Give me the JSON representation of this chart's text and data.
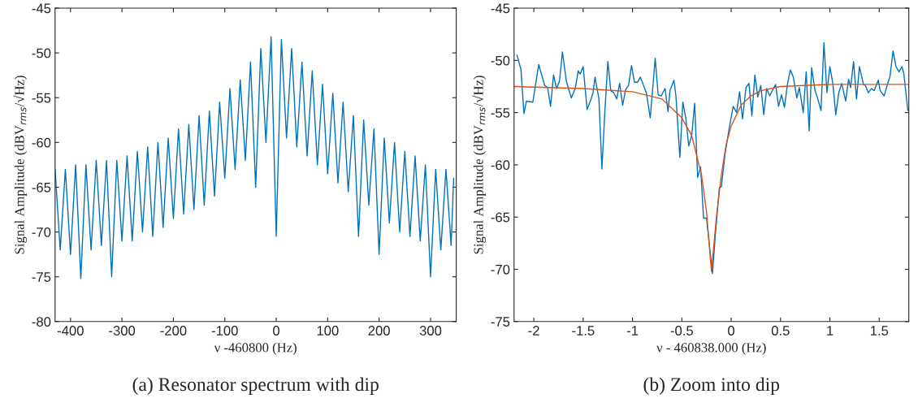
{
  "chart_data": [
    {
      "type": "line",
      "title": "(a) Resonator spectrum with dip",
      "xlabel": "ν -460800 (Hz)",
      "ylabel": "Signal Amplitude (dBV$_{rms}$/√Hz)",
      "xlim": [
        -430,
        350
      ],
      "xticks": [
        -400,
        -300,
        -200,
        -100,
        0,
        100,
        200,
        300
      ],
      "ylim": [
        -80,
        -45
      ],
      "yticks": [
        -80,
        -75,
        -70,
        -65,
        -60,
        -55,
        -50,
        -45
      ],
      "grid": false,
      "legend": false,
      "series": [
        {
          "color": "#0072bd",
          "x": [
            -430,
            -420,
            -410,
            -400,
            -390,
            -380,
            -370,
            -360,
            -350,
            -340,
            -330,
            -320,
            -310,
            -300,
            -290,
            -280,
            -270,
            -260,
            -250,
            -240,
            -230,
            -220,
            -210,
            -200,
            -190,
            -180,
            -170,
            -160,
            -150,
            -140,
            -130,
            -120,
            -110,
            -100,
            -90,
            -80,
            -70,
            -60,
            -50,
            -40,
            -30,
            -20,
            -10,
            0,
            10,
            20,
            30,
            40,
            50,
            60,
            70,
            80,
            90,
            100,
            110,
            120,
            130,
            140,
            150,
            160,
            170,
            180,
            190,
            200,
            210,
            220,
            230,
            240,
            250,
            260,
            270,
            280,
            290,
            300,
            310,
            320,
            330,
            340,
            345
          ],
          "values": [
            -63,
            -72,
            -63,
            -72.5,
            -62.5,
            -75.2,
            -62.5,
            -72,
            -62,
            -71.5,
            -62,
            -75,
            -62,
            -71,
            -61.5,
            -71,
            -61,
            -70,
            -60.5,
            -70.5,
            -60,
            -69.5,
            -59.5,
            -68.5,
            -58.5,
            -68,
            -58,
            -67.5,
            -57,
            -67,
            -56.5,
            -66,
            -55.5,
            -64,
            -54,
            -63,
            -53,
            -62,
            -51,
            -65,
            -49.5,
            -60,
            -48.2,
            -70.5,
            -48.5,
            -59.5,
            -49.5,
            -60.5,
            -51,
            -61.5,
            -52,
            -62.5,
            -53.5,
            -63.5,
            -54.5,
            -64.5,
            -55.5,
            -65.5,
            -57,
            -70.5,
            -57.5,
            -67,
            -58.5,
            -72.5,
            -59.5,
            -69,
            -60,
            -70,
            -61,
            -70.5,
            -61.5,
            -71,
            -62.5,
            -75,
            -63,
            -72,
            -63,
            -71.5,
            -64
          ]
        }
      ]
    },
    {
      "type": "line",
      "title": "(b) Zoom into dip",
      "xlabel": "ν - 460838.000 (Hz)",
      "ylabel": "Signal Amplitude (dBV$_{rms}$/√Hz)",
      "xlim": [
        -2.2,
        1.8
      ],
      "xticks": [
        -2,
        -1.5,
        -1,
        -0.5,
        0,
        0.5,
        1,
        1.5
      ],
      "ylim": [
        -75,
        -45
      ],
      "yticks": [
        -75,
        -70,
        -65,
        -60,
        -55,
        -50,
        -45
      ],
      "grid": false,
      "legend": false,
      "series": [
        {
          "color": "#0072bd",
          "x": [
            -2.17,
            -2.13,
            -2.1,
            -2.075,
            -2.01,
            -1.95,
            -1.89,
            -1.86,
            -1.83,
            -1.8,
            -1.77,
            -1.74,
            -1.71,
            -1.67,
            -1.62,
            -1.58,
            -1.55,
            -1.53,
            -1.5,
            -1.46,
            -1.42,
            -1.4,
            -1.38,
            -1.34,
            -1.31,
            -1.28,
            -1.25,
            -1.22,
            -1.19,
            -1.16,
            -1.13,
            -1.1,
            -1.07,
            -1.04,
            -1.01,
            -0.98,
            -0.95,
            -0.92,
            -0.86,
            -0.82,
            -0.77,
            -0.74,
            -0.71,
            -0.67,
            -0.64,
            -0.62,
            -0.58,
            -0.56,
            -0.52,
            -0.49,
            -0.46,
            -0.43,
            -0.4,
            -0.37,
            -0.34,
            -0.31,
            -0.28,
            -0.25,
            -0.19,
            -0.16,
            -0.12,
            -0.1,
            -0.06,
            -0.02,
            0.02,
            0.055,
            0.085,
            0.115,
            0.15,
            0.18,
            0.21,
            0.24,
            0.27,
            0.3,
            0.33,
            0.36,
            0.39,
            0.45,
            0.48,
            0.51,
            0.54,
            0.57,
            0.6,
            0.63,
            0.665,
            0.69,
            0.73,
            0.76,
            0.79,
            0.815,
            0.85,
            0.875,
            0.91,
            0.94,
            0.97,
            1.0,
            1.03,
            1.06,
            1.09,
            1.12,
            1.16,
            1.19,
            1.21,
            1.24,
            1.27,
            1.3,
            1.34,
            1.36,
            1.39,
            1.42,
            1.45,
            1.49,
            1.51,
            1.55,
            1.58,
            1.61,
            1.64,
            1.67,
            1.7,
            1.73,
            1.75,
            1.79
          ],
          "values": [
            -49.5,
            -50.9,
            -55.1,
            -53.9,
            -54,
            -50.4,
            -52.4,
            -52.6,
            -54.4,
            -51.4,
            -52.7,
            -52,
            -49.2,
            -52,
            -53.6,
            -52.7,
            -51,
            -51.3,
            -50.6,
            -54.7,
            -53.7,
            -53.1,
            -51.6,
            -53.7,
            -60.4,
            -54.9,
            -50.1,
            -52.9,
            -53.1,
            -53.7,
            -52.2,
            -54.3,
            -52.8,
            -52.4,
            -50.5,
            -52.1,
            -52.1,
            -51.6,
            -53.1,
            -55.5,
            -49.8,
            -53.3,
            -53.4,
            -52.7,
            -54.9,
            -52.9,
            -51.9,
            -53.4,
            -59.3,
            -54,
            -55.5,
            -58.2,
            -57.2,
            -54.1,
            -61.2,
            -60.2,
            -65.1,
            -65.1,
            -70.4,
            -66.7,
            -62.2,
            -62.1,
            -58.8,
            -56.5,
            -54.4,
            -55,
            -53,
            -55.6,
            -52.6,
            -52.2,
            -55.3,
            -51.4,
            -53.5,
            -52.4,
            -55.2,
            -52.7,
            -53.4,
            -52.3,
            -54.4,
            -53.3,
            -54.5,
            -52.3,
            -50.9,
            -51.6,
            -53.6,
            -52.6,
            -55,
            -51.1,
            -56.75,
            -50.7,
            -52.9,
            -53.6,
            -54.8,
            -48.3,
            -53.1,
            -50.6,
            -52.2,
            -55.2,
            -53.1,
            -52.2,
            -53.9,
            -51.8,
            -52.6,
            -50.1,
            -53.7,
            -50.6,
            -52.3,
            -52.4,
            -53.1,
            -52.7,
            -52.9,
            -51.9,
            -52.9,
            -53.4,
            -52.4,
            -51.5,
            -49.1,
            -50.6,
            -51.1,
            -50.6,
            -51.3,
            -54.8
          ]
        },
        {
          "color": "#d95319",
          "x": [
            -2.2,
            -1.5,
            -1.0,
            -0.7,
            -0.5,
            -0.4,
            -0.3,
            -0.25,
            -0.2,
            -0.15,
            -0.1,
            -0.05,
            0,
            0.1,
            0.2,
            0.3,
            0.5,
            1.0,
            1.8
          ],
          "values": [
            -52.5,
            -52.7,
            -53,
            -53.7,
            -55.5,
            -57.2,
            -61,
            -64.5,
            -70.2,
            -65,
            -61,
            -58,
            -56.3,
            -54.3,
            -53.4,
            -52.9,
            -52.5,
            -52.3,
            -52.3
          ]
        }
      ]
    }
  ]
}
